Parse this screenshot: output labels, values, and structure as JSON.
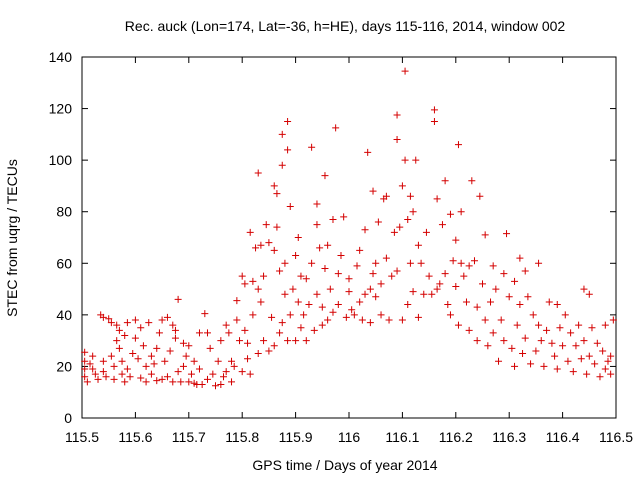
{
  "chart_data": {
    "type": "scatter",
    "title": "Rec. auck (Lon=174, Lat=-36, h=HE), days 115-116, 2014, window 002",
    "xlabel": "GPS time / Days of year 2014",
    "ylabel": "STEC from uqrg / TECUs",
    "xlim": [
      115.5,
      116.5
    ],
    "ylim": [
      0,
      140
    ],
    "xticks": [
      "115.5",
      "115.6",
      "115.7",
      "115.8",
      "115.9",
      "116",
      "116.1",
      "116.2",
      "116.3",
      "116.4",
      "116.5"
    ],
    "yticks": [
      "0",
      "20",
      "40",
      "60",
      "80",
      "100",
      "120",
      "140"
    ],
    "grid": false,
    "marker": "plus",
    "color": "#d40000",
    "series": [
      {
        "points": [
          [
            115.505,
            25.5
          ],
          [
            115.505,
            22
          ],
          [
            115.505,
            19
          ],
          [
            115.505,
            16
          ],
          [
            115.51,
            14
          ],
          [
            115.515,
            21
          ],
          [
            115.52,
            24
          ],
          [
            115.52,
            19
          ],
          [
            115.525,
            17
          ],
          [
            115.53,
            15
          ],
          [
            115.535,
            40
          ],
          [
            115.54,
            39
          ],
          [
            115.54,
            22
          ],
          [
            115.54,
            18
          ],
          [
            115.545,
            16
          ],
          [
            115.55,
            38.5
          ],
          [
            115.555,
            37
          ],
          [
            115.555,
            24
          ],
          [
            115.56,
            20
          ],
          [
            115.56,
            15
          ],
          [
            115.565,
            30
          ],
          [
            115.565,
            36
          ],
          [
            115.57,
            34
          ],
          [
            115.57,
            27
          ],
          [
            115.575,
            22
          ],
          [
            115.575,
            17
          ],
          [
            115.58,
            14
          ],
          [
            115.58,
            32
          ],
          [
            115.585,
            37
          ],
          [
            115.585,
            19
          ],
          [
            115.59,
            16
          ],
          [
            115.595,
            25
          ],
          [
            115.6,
            38
          ],
          [
            115.6,
            31
          ],
          [
            115.605,
            23
          ],
          [
            115.61,
            15.5
          ],
          [
            115.61,
            35
          ],
          [
            115.615,
            28
          ],
          [
            115.62,
            20
          ],
          [
            115.62,
            14
          ],
          [
            115.625,
            37
          ],
          [
            115.63,
            24
          ],
          [
            115.63,
            17
          ],
          [
            115.635,
            21
          ],
          [
            115.64,
            14.5
          ],
          [
            115.64,
            27
          ],
          [
            115.645,
            33
          ],
          [
            115.65,
            38
          ],
          [
            115.65,
            15
          ],
          [
            115.655,
            22
          ],
          [
            115.66,
            16
          ],
          [
            115.66,
            39
          ],
          [
            115.665,
            26
          ],
          [
            115.67,
            36
          ],
          [
            115.67,
            14
          ],
          [
            115.675,
            34
          ],
          [
            115.675,
            31
          ],
          [
            115.68,
            46
          ],
          [
            115.68,
            18
          ],
          [
            115.685,
            14
          ],
          [
            115.69,
            29
          ],
          [
            115.69,
            20
          ],
          [
            115.695,
            24
          ],
          [
            115.7,
            28
          ],
          [
            115.7,
            14
          ],
          [
            115.705,
            17
          ],
          [
            115.71,
            13.5
          ],
          [
            115.71,
            22
          ],
          [
            115.715,
            13
          ],
          [
            115.72,
            33
          ],
          [
            115.72,
            19
          ],
          [
            115.725,
            13
          ],
          [
            115.73,
            40.5
          ],
          [
            115.735,
            33
          ],
          [
            115.735,
            15
          ],
          [
            115.74,
            27
          ],
          [
            115.745,
            17
          ],
          [
            115.75,
            12.5
          ],
          [
            115.755,
            22
          ],
          [
            115.76,
            13
          ],
          [
            115.76,
            30
          ],
          [
            115.765,
            16
          ],
          [
            115.77,
            18
          ],
          [
            115.77,
            36
          ],
          [
            115.775,
            33
          ],
          [
            115.78,
            22
          ],
          [
            115.78,
            14
          ],
          [
            115.785,
            20
          ],
          [
            115.79,
            45.5
          ],
          [
            115.79,
            38
          ],
          [
            115.795,
            30
          ],
          [
            115.8,
            18
          ],
          [
            115.8,
            55
          ],
          [
            115.805,
            52
          ],
          [
            115.805,
            34
          ],
          [
            115.81,
            29
          ],
          [
            115.81,
            23
          ],
          [
            115.815,
            72
          ],
          [
            115.815,
            17
          ],
          [
            115.82,
            40
          ],
          [
            115.82,
            53
          ],
          [
            115.825,
            66
          ],
          [
            115.83,
            95
          ],
          [
            115.83,
            50
          ],
          [
            115.83,
            25
          ],
          [
            115.835,
            67
          ],
          [
            115.835,
            45
          ],
          [
            115.84,
            55
          ],
          [
            115.84,
            30
          ],
          [
            115.845,
            75
          ],
          [
            115.85,
            68
          ],
          [
            115.85,
            26
          ],
          [
            115.855,
            39
          ],
          [
            115.86,
            90
          ],
          [
            115.86,
            65
          ],
          [
            115.86,
            28
          ],
          [
            115.865,
            87
          ],
          [
            115.865,
            74
          ],
          [
            115.87,
            33
          ],
          [
            115.87,
            57
          ],
          [
            115.875,
            110
          ],
          [
            115.875,
            98
          ],
          [
            115.875,
            37
          ],
          [
            115.88,
            60
          ],
          [
            115.88,
            48
          ],
          [
            115.885,
            115
          ],
          [
            115.885,
            104
          ],
          [
            115.885,
            30
          ],
          [
            115.89,
            82
          ],
          [
            115.89,
            40
          ],
          [
            115.895,
            50
          ],
          [
            115.9,
            63
          ],
          [
            115.9,
            30
          ],
          [
            115.905,
            70
          ],
          [
            115.905,
            45
          ],
          [
            115.91,
            35
          ],
          [
            115.91,
            55
          ],
          [
            115.915,
            40
          ],
          [
            115.92,
            54
          ],
          [
            115.92,
            30
          ],
          [
            115.925,
            44
          ],
          [
            115.93,
            105
          ],
          [
            115.93,
            60
          ],
          [
            115.935,
            34
          ],
          [
            115.94,
            83
          ],
          [
            115.94,
            75
          ],
          [
            115.94,
            48
          ],
          [
            115.945,
            66
          ],
          [
            115.95,
            43
          ],
          [
            115.95,
            36
          ],
          [
            115.955,
            94
          ],
          [
            115.955,
            58
          ],
          [
            115.96,
            67
          ],
          [
            115.96,
            38
          ],
          [
            115.965,
            50
          ],
          [
            115.97,
            77
          ],
          [
            115.97,
            41
          ],
          [
            115.975,
            112.5
          ],
          [
            115.98,
            56
          ],
          [
            115.98,
            44
          ],
          [
            115.985,
            63
          ],
          [
            115.99,
            78
          ],
          [
            115.995,
            39
          ],
          [
            116.0,
            49
          ],
          [
            116.0,
            54
          ],
          [
            116.005,
            42
          ],
          [
            116.01,
            40
          ],
          [
            116.015,
            59
          ],
          [
            116.02,
            65
          ],
          [
            116.02,
            45
          ],
          [
            116.025,
            38
          ],
          [
            116.03,
            73
          ],
          [
            116.03,
            48
          ],
          [
            116.035,
            103
          ],
          [
            116.04,
            50
          ],
          [
            116.04,
            37
          ],
          [
            116.045,
            88
          ],
          [
            116.045,
            56
          ],
          [
            116.05,
            47
          ],
          [
            116.05,
            60
          ],
          [
            116.055,
            76
          ],
          [
            116.06,
            40
          ],
          [
            116.06,
            52
          ],
          [
            116.065,
            85
          ],
          [
            116.07,
            86
          ],
          [
            116.07,
            62
          ],
          [
            116.075,
            38
          ],
          [
            116.08,
            55
          ],
          [
            116.085,
            72
          ],
          [
            116.09,
            117.5
          ],
          [
            116.09,
            108
          ],
          [
            116.09,
            57
          ],
          [
            116.095,
            74
          ],
          [
            116.1,
            90
          ],
          [
            116.1,
            38
          ],
          [
            116.105,
            134.5
          ],
          [
            116.105,
            100
          ],
          [
            116.11,
            77
          ],
          [
            116.11,
            44
          ],
          [
            116.115,
            86
          ],
          [
            116.115,
            60
          ],
          [
            116.12,
            80
          ],
          [
            116.12,
            49
          ],
          [
            116.125,
            100
          ],
          [
            116.13,
            67
          ],
          [
            116.13,
            39
          ],
          [
            116.135,
            60
          ],
          [
            116.14,
            48
          ],
          [
            116.145,
            72
          ],
          [
            116.15,
            55
          ],
          [
            116.155,
            48
          ],
          [
            116.16,
            119.5
          ],
          [
            116.16,
            115
          ],
          [
            116.165,
            85
          ],
          [
            116.165,
            50
          ],
          [
            116.17,
            52
          ],
          [
            116.175,
            75
          ],
          [
            116.18,
            92
          ],
          [
            116.18,
            56
          ],
          [
            116.185,
            44
          ],
          [
            116.19,
            79
          ],
          [
            116.19,
            40
          ],
          [
            116.195,
            61
          ],
          [
            116.2,
            69
          ],
          [
            116.2,
            51
          ],
          [
            116.205,
            106
          ],
          [
            116.205,
            36
          ],
          [
            116.21,
            80
          ],
          [
            116.21,
            60
          ],
          [
            116.215,
            55
          ],
          [
            116.22,
            45
          ],
          [
            116.225,
            59
          ],
          [
            116.225,
            34
          ],
          [
            116.23,
            92
          ],
          [
            116.235,
            61
          ],
          [
            116.24,
            43
          ],
          [
            116.24,
            30
          ],
          [
            116.245,
            86
          ],
          [
            116.25,
            52
          ],
          [
            116.255,
            71
          ],
          [
            116.255,
            38
          ],
          [
            116.26,
            28
          ],
          [
            116.265,
            45
          ],
          [
            116.27,
            59
          ],
          [
            116.27,
            33
          ],
          [
            116.275,
            50
          ],
          [
            116.28,
            22
          ],
          [
            116.285,
            38
          ],
          [
            116.29,
            56
          ],
          [
            116.29,
            30
          ],
          [
            116.295,
            71.5
          ],
          [
            116.3,
            47
          ],
          [
            116.305,
            27
          ],
          [
            116.31,
            53
          ],
          [
            116.31,
            20
          ],
          [
            116.315,
            36
          ],
          [
            116.32,
            62
          ],
          [
            116.32,
            44
          ],
          [
            116.325,
            25
          ],
          [
            116.33,
            57
          ],
          [
            116.33,
            31
          ],
          [
            116.335,
            47
          ],
          [
            116.34,
            21
          ],
          [
            116.345,
            40
          ],
          [
            116.35,
            26
          ],
          [
            116.355,
            60
          ],
          [
            116.355,
            36
          ],
          [
            116.36,
            30
          ],
          [
            116.365,
            20
          ],
          [
            116.37,
            34
          ],
          [
            116.375,
            45
          ],
          [
            116.38,
            29
          ],
          [
            116.385,
            24
          ],
          [
            116.39,
            44
          ],
          [
            116.39,
            19
          ],
          [
            116.395,
            35
          ],
          [
            116.4,
            28
          ],
          [
            116.405,
            40
          ],
          [
            116.41,
            22
          ],
          [
            116.415,
            33
          ],
          [
            116.42,
            18
          ],
          [
            116.425,
            28
          ],
          [
            116.43,
            36
          ],
          [
            116.435,
            23
          ],
          [
            116.44,
            50
          ],
          [
            116.44,
            30
          ],
          [
            116.445,
            17
          ],
          [
            116.45,
            48
          ],
          [
            116.45,
            24
          ],
          [
            116.455,
            35
          ],
          [
            116.46,
            21
          ],
          [
            116.465,
            29
          ],
          [
            116.47,
            16
          ],
          [
            116.475,
            26
          ],
          [
            116.48,
            36
          ],
          [
            116.48,
            19
          ],
          [
            116.485,
            22
          ],
          [
            116.49,
            24
          ],
          [
            116.49,
            17
          ],
          [
            116.495,
            38
          ]
        ]
      }
    ]
  }
}
